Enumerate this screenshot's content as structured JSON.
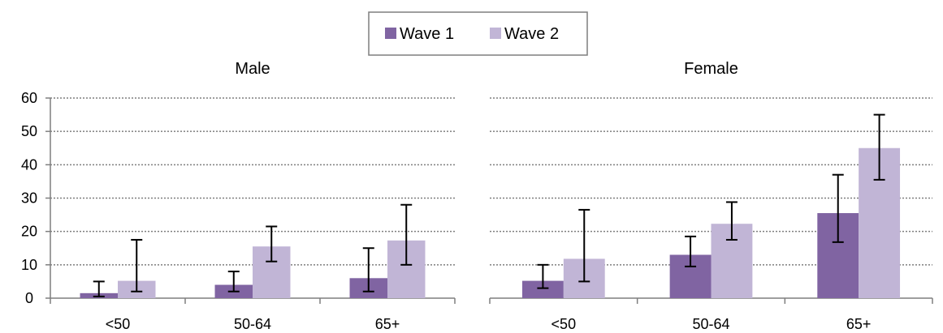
{
  "colors": {
    "wave1": "#8064a2",
    "wave2": "#c1b5d6",
    "grid": "#7f7f7f",
    "axis": "#7f7f7f",
    "error_bar": "#000000",
    "legend_border": "#7f7f7f"
  },
  "legend": {
    "placement": "top-center",
    "items": [
      {
        "label": "Wave 1",
        "color": "#8064a2"
      },
      {
        "label": "Wave 2",
        "color": "#c1b5d6"
      }
    ]
  },
  "chart_data": [
    {
      "type": "bar",
      "title": "Male",
      "categories": [
        "<50",
        "50-64",
        "65+"
      ],
      "ylim": [
        0,
        60
      ],
      "yticks": [
        0,
        10,
        20,
        30,
        40,
        50,
        60
      ],
      "show_y_tick_labels": true,
      "grid": "dotted horizontal",
      "series": [
        {
          "name": "Wave 1",
          "values": [
            1.5,
            4,
            6
          ],
          "error_low": [
            0.5,
            2,
            2
          ],
          "error_high": [
            5,
            8,
            15
          ]
        },
        {
          "name": "Wave 2",
          "values": [
            5.2,
            15.5,
            17.3
          ],
          "error_low": [
            2,
            11,
            10
          ],
          "error_high": [
            17.5,
            21.5,
            28
          ]
        }
      ]
    },
    {
      "type": "bar",
      "title": "Female",
      "categories": [
        "<50",
        "50-64",
        "65+"
      ],
      "ylim": [
        0,
        60
      ],
      "yticks": [
        0,
        10,
        20,
        30,
        40,
        50,
        60
      ],
      "show_y_tick_labels": false,
      "grid": "dotted horizontal",
      "series": [
        {
          "name": "Wave 1",
          "values": [
            5.2,
            13,
            25.5
          ],
          "error_low": [
            3,
            9.5,
            16.8
          ],
          "error_high": [
            10,
            18.5,
            37
          ]
        },
        {
          "name": "Wave 2",
          "values": [
            11.8,
            22.3,
            45
          ],
          "error_low": [
            5,
            17.5,
            35.5
          ],
          "error_high": [
            26.5,
            28.8,
            55
          ]
        }
      ]
    }
  ]
}
